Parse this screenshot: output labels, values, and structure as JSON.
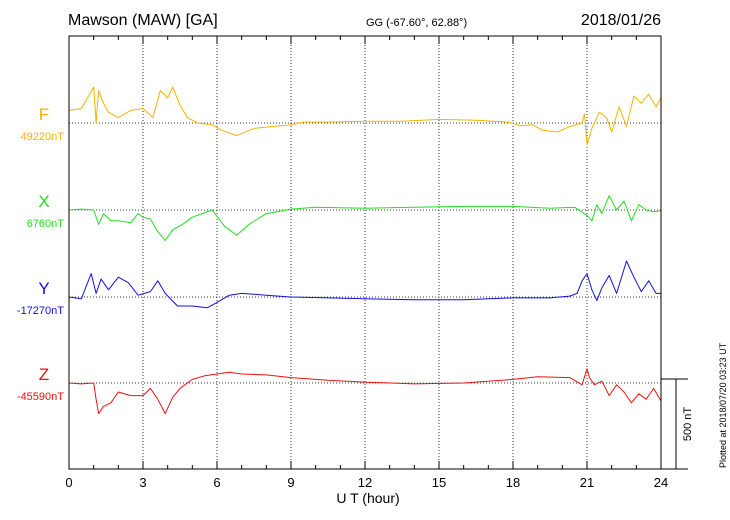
{
  "header": {
    "station": "Mawson (MAW)  [GA]",
    "coordinates": "GG (-67.60°,  62.88°)",
    "date": "2018/01/26"
  },
  "footer": {
    "plotted": "Plotted at 2018/07/20 03:23 UT"
  },
  "chart_data": {
    "type": "line",
    "title": "Mawson (MAW)  [GA]",
    "xlabel": "U T (hour)",
    "xlim": [
      0,
      24
    ],
    "x_ticks": [
      "0",
      "3",
      "6",
      "9",
      "12",
      "15",
      "18",
      "21",
      "24"
    ],
    "scale_bar": {
      "label": "500 nT",
      "value": 500
    },
    "grid": true,
    "series": [
      {
        "name": "F",
        "baseline_label": "49220nT",
        "baseline": 49220,
        "color": "#f5b400",
        "points": [
          [
            0,
            49290
          ],
          [
            0.5,
            49300
          ],
          [
            1.0,
            49420
          ],
          [
            1.1,
            49220
          ],
          [
            1.2,
            49400
          ],
          [
            1.4,
            49330
          ],
          [
            1.6,
            49280
          ],
          [
            2.0,
            49250
          ],
          [
            2.5,
            49290
          ],
          [
            3.0,
            49300
          ],
          [
            3.4,
            49250
          ],
          [
            3.7,
            49400
          ],
          [
            4.0,
            49360
          ],
          [
            4.2,
            49420
          ],
          [
            4.5,
            49320
          ],
          [
            4.8,
            49250
          ],
          [
            5.2,
            49220
          ],
          [
            5.8,
            49210
          ],
          [
            6.2,
            49180
          ],
          [
            6.8,
            49150
          ],
          [
            7.5,
            49190
          ],
          [
            8.2,
            49200
          ],
          [
            9.0,
            49210
          ],
          [
            9.5,
            49225
          ],
          [
            10.5,
            49225
          ],
          [
            12.0,
            49230
          ],
          [
            13.5,
            49230
          ],
          [
            15.0,
            49240
          ],
          [
            16.5,
            49235
          ],
          [
            17.8,
            49225
          ],
          [
            18.3,
            49205
          ],
          [
            18.8,
            49210
          ],
          [
            19.2,
            49180
          ],
          [
            19.8,
            49170
          ],
          [
            20.3,
            49200
          ],
          [
            20.8,
            49220
          ],
          [
            20.9,
            49270
          ],
          [
            21.0,
            49100
          ],
          [
            21.2,
            49190
          ],
          [
            21.5,
            49280
          ],
          [
            21.8,
            49250
          ],
          [
            22.0,
            49170
          ],
          [
            22.3,
            49310
          ],
          [
            22.6,
            49200
          ],
          [
            22.9,
            49370
          ],
          [
            23.2,
            49330
          ],
          [
            23.5,
            49380
          ],
          [
            23.8,
            49310
          ],
          [
            24.0,
            49360
          ]
        ]
      },
      {
        "name": "X",
        "baseline_label": "6760nT",
        "baseline": 6760,
        "color": "#22dd22",
        "points": [
          [
            0,
            6760
          ],
          [
            0.5,
            6765
          ],
          [
            1.0,
            6760
          ],
          [
            1.2,
            6680
          ],
          [
            1.4,
            6740
          ],
          [
            1.7,
            6700
          ],
          [
            2.0,
            6700
          ],
          [
            2.5,
            6690
          ],
          [
            2.8,
            6740
          ],
          [
            3.0,
            6720
          ],
          [
            3.3,
            6710
          ],
          [
            3.6,
            6640
          ],
          [
            3.9,
            6590
          ],
          [
            4.2,
            6650
          ],
          [
            4.6,
            6680
          ],
          [
            5.0,
            6720
          ],
          [
            5.4,
            6740
          ],
          [
            5.8,
            6760
          ],
          [
            6.3,
            6670
          ],
          [
            6.8,
            6620
          ],
          [
            7.3,
            6680
          ],
          [
            8.0,
            6740
          ],
          [
            9.0,
            6765
          ],
          [
            10.0,
            6775
          ],
          [
            12.0,
            6770
          ],
          [
            14.0,
            6775
          ],
          [
            16.0,
            6780
          ],
          [
            18.0,
            6780
          ],
          [
            19.5,
            6770
          ],
          [
            20.5,
            6775
          ],
          [
            21.0,
            6730
          ],
          [
            21.2,
            6700
          ],
          [
            21.4,
            6790
          ],
          [
            21.6,
            6740
          ],
          [
            21.9,
            6840
          ],
          [
            22.2,
            6760
          ],
          [
            22.5,
            6810
          ],
          [
            22.8,
            6700
          ],
          [
            23.1,
            6790
          ],
          [
            23.4,
            6760
          ],
          [
            23.7,
            6750
          ],
          [
            24.0,
            6755
          ]
        ]
      },
      {
        "name": "Y",
        "baseline_label": "-17270nT",
        "baseline": -17270,
        "color": "#1010dd",
        "points": [
          [
            0,
            -17270
          ],
          [
            0.5,
            -17280
          ],
          [
            0.9,
            -17140
          ],
          [
            1.1,
            -17250
          ],
          [
            1.3,
            -17170
          ],
          [
            1.6,
            -17230
          ],
          [
            2.0,
            -17160
          ],
          [
            2.4,
            -17190
          ],
          [
            2.8,
            -17260
          ],
          [
            3.3,
            -17240
          ],
          [
            3.6,
            -17180
          ],
          [
            3.9,
            -17250
          ],
          [
            4.4,
            -17320
          ],
          [
            5.0,
            -17320
          ],
          [
            5.6,
            -17330
          ],
          [
            6.0,
            -17300
          ],
          [
            6.5,
            -17260
          ],
          [
            7.0,
            -17250
          ],
          [
            8.0,
            -17260
          ],
          [
            9.0,
            -17270
          ],
          [
            10.5,
            -17275
          ],
          [
            12.0,
            -17280
          ],
          [
            14.0,
            -17285
          ],
          [
            16.0,
            -17285
          ],
          [
            18.0,
            -17275
          ],
          [
            19.5,
            -17275
          ],
          [
            20.3,
            -17265
          ],
          [
            20.6,
            -17250
          ],
          [
            20.8,
            -17180
          ],
          [
            21.0,
            -17140
          ],
          [
            21.2,
            -17230
          ],
          [
            21.4,
            -17290
          ],
          [
            21.6,
            -17220
          ],
          [
            21.9,
            -17150
          ],
          [
            22.2,
            -17250
          ],
          [
            22.6,
            -17070
          ],
          [
            22.9,
            -17160
          ],
          [
            23.2,
            -17240
          ],
          [
            23.5,
            -17180
          ],
          [
            23.8,
            -17250
          ],
          [
            24.0,
            -17250
          ]
        ]
      },
      {
        "name": "Z",
        "baseline_label": "-45590nT",
        "baseline": -45590,
        "color": "#ee1111",
        "points": [
          [
            0,
            -45590
          ],
          [
            0.5,
            -45595
          ],
          [
            1.0,
            -45590
          ],
          [
            1.1,
            -45680
          ],
          [
            1.2,
            -45760
          ],
          [
            1.4,
            -45720
          ],
          [
            1.7,
            -45700
          ],
          [
            2.0,
            -45640
          ],
          [
            2.5,
            -45660
          ],
          [
            3.0,
            -45660
          ],
          [
            3.3,
            -45620
          ],
          [
            3.6,
            -45680
          ],
          [
            3.9,
            -45760
          ],
          [
            4.2,
            -45670
          ],
          [
            4.5,
            -45620
          ],
          [
            5.0,
            -45570
          ],
          [
            5.5,
            -45550
          ],
          [
            6.0,
            -45540
          ],
          [
            6.5,
            -45530
          ],
          [
            7.0,
            -45540
          ],
          [
            8.0,
            -45545
          ],
          [
            9.0,
            -45560
          ],
          [
            10.5,
            -45575
          ],
          [
            12.0,
            -45585
          ],
          [
            14.0,
            -45595
          ],
          [
            16.0,
            -45590
          ],
          [
            18.0,
            -45570
          ],
          [
            19.0,
            -45555
          ],
          [
            20.3,
            -45560
          ],
          [
            20.8,
            -45600
          ],
          [
            21.0,
            -45510
          ],
          [
            21.1,
            -45560
          ],
          [
            21.3,
            -45600
          ],
          [
            21.6,
            -45580
          ],
          [
            21.9,
            -45660
          ],
          [
            22.2,
            -45600
          ],
          [
            22.5,
            -45640
          ],
          [
            22.8,
            -45700
          ],
          [
            23.1,
            -45650
          ],
          [
            23.4,
            -45680
          ],
          [
            23.7,
            -45620
          ],
          [
            24.0,
            -45690
          ]
        ]
      }
    ]
  }
}
